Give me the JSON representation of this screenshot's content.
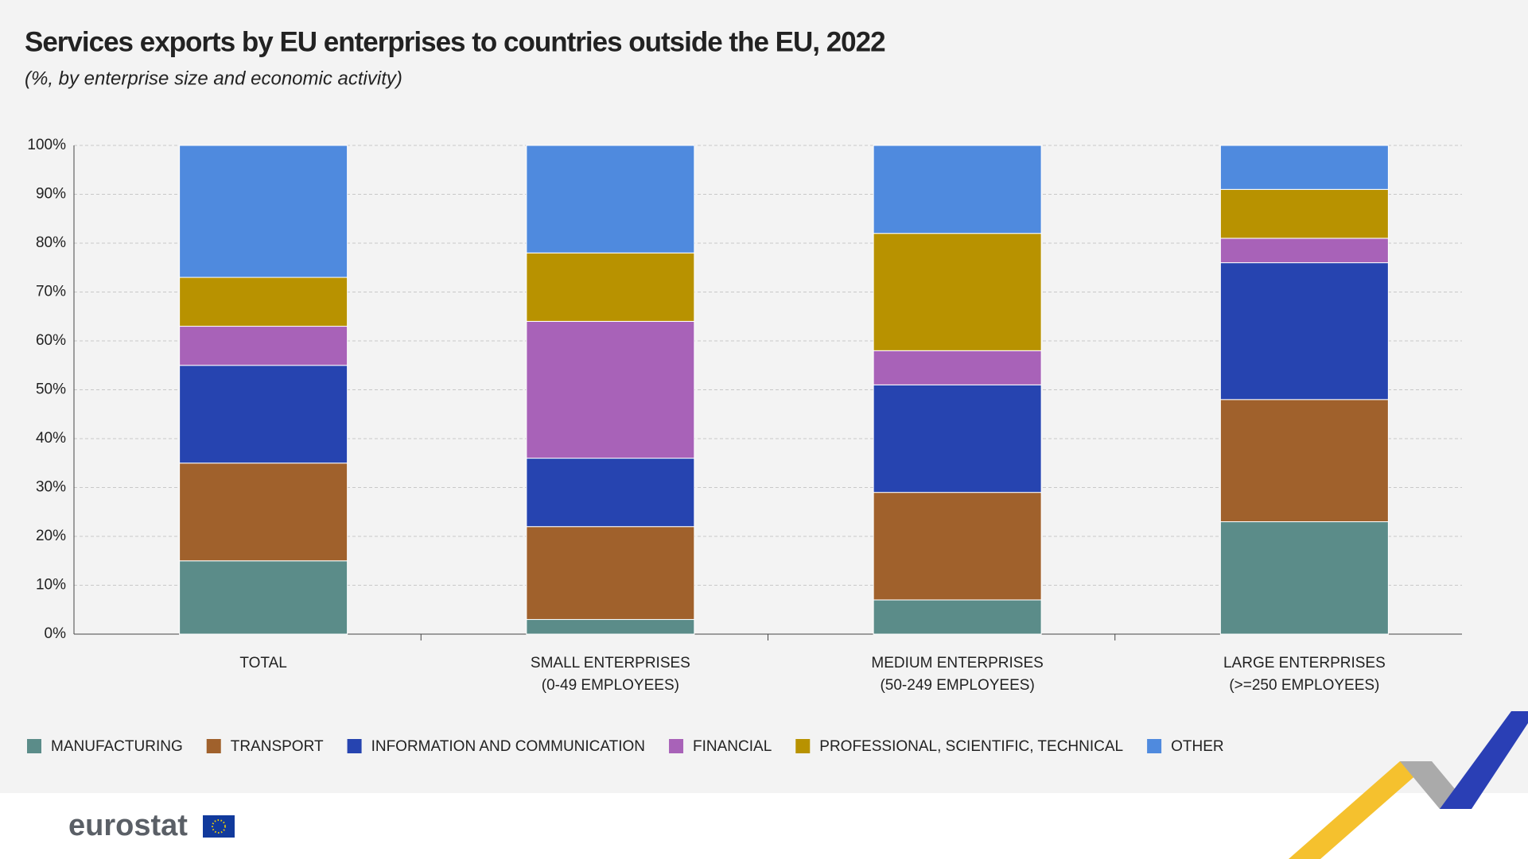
{
  "chart_data": {
    "type": "stacked-bar",
    "title": "Services exports by EU enterprises to countries outside the EU, 2022",
    "subtitle": "(%, by enterprise size and economic activity)",
    "categories": [
      [
        "TOTAL"
      ],
      [
        "SMALL ENTERPRISES",
        "(0-49 EMPLOYEES)"
      ],
      [
        "MEDIUM ENTERPRISES",
        "(50-249 EMPLOYEES)"
      ],
      [
        "LARGE ENTERPRISES",
        "(>=250 EMPLOYEES)"
      ]
    ],
    "series": [
      {
        "name": "MANUFACTURING",
        "color": "#5b8c89",
        "values": [
          15,
          3,
          7,
          23
        ]
      },
      {
        "name": "TRANSPORT",
        "color": "#a0612c",
        "values": [
          20,
          19,
          22,
          25
        ]
      },
      {
        "name": "INFORMATION AND COMMUNICATION",
        "color": "#2644b0",
        "values": [
          20,
          14,
          22,
          28
        ]
      },
      {
        "name": "FINANCIAL",
        "color": "#a862b8",
        "values": [
          8,
          28,
          7,
          5
        ]
      },
      {
        "name": "PROFESSIONAL, SCIENTIFIC, TECHNICAL",
        "color": "#b89200",
        "values": [
          10,
          14,
          24,
          10
        ]
      },
      {
        "name": "OTHER",
        "color": "#4f8ade",
        "values": [
          27,
          22,
          18,
          9
        ]
      }
    ],
    "ylim": [
      0,
      100
    ],
    "yticks": [
      {
        "value": 0,
        "label": "0%"
      },
      {
        "value": 10,
        "label": "10%"
      },
      {
        "value": 20,
        "label": "20%"
      },
      {
        "value": 30,
        "label": "30%"
      },
      {
        "value": 40,
        "label": "40%"
      },
      {
        "value": 50,
        "label": "50%"
      },
      {
        "value": 60,
        "label": "60%"
      },
      {
        "value": 70,
        "label": "70%"
      },
      {
        "value": 80,
        "label": "80%"
      },
      {
        "value": 90,
        "label": "90%"
      },
      {
        "value": 100,
        "label": "100%"
      }
    ],
    "grid": true,
    "legend": "bottom",
    "brand": "eurostat"
  }
}
